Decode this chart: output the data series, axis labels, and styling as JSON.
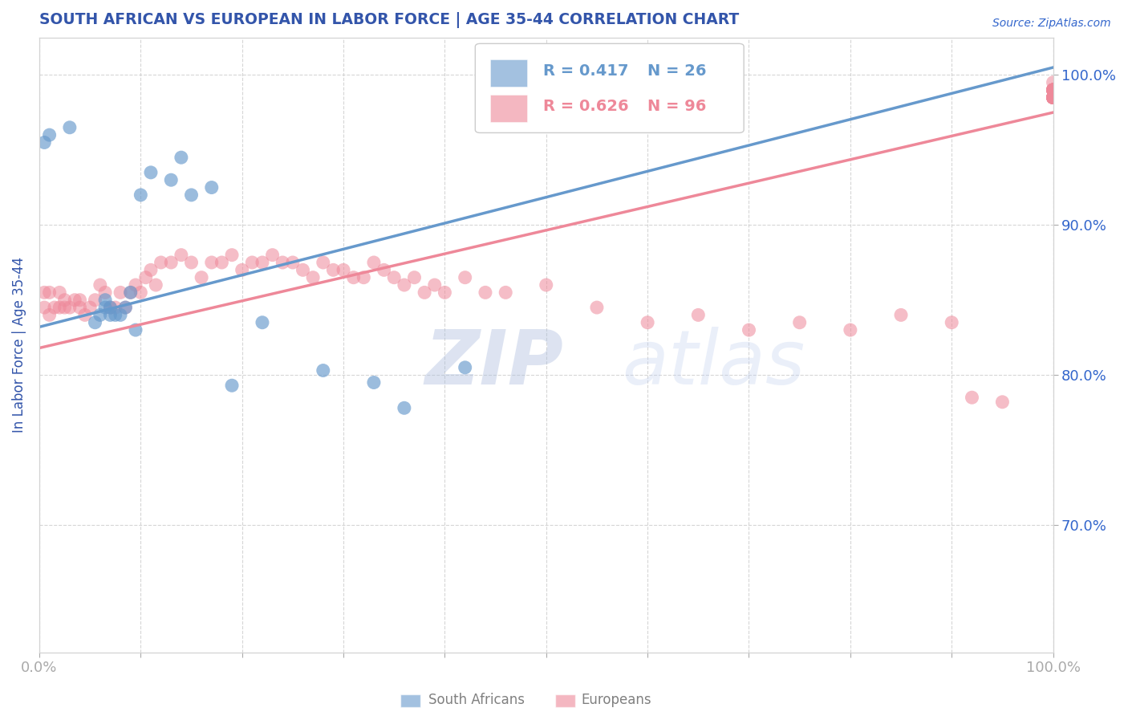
{
  "title": "SOUTH AFRICAN VS EUROPEAN IN LABOR FORCE | AGE 35-44 CORRELATION CHART",
  "source": "Source: ZipAtlas.com",
  "ylabel": "In Labor Force | Age 35-44",
  "xlim": [
    0.0,
    1.0
  ],
  "ylim": [
    0.615,
    1.025
  ],
  "right_yticks": [
    0.7,
    0.8,
    0.9,
    1.0
  ],
  "right_yticklabels": [
    "70.0%",
    "80.0%",
    "90.0%",
    "100.0%"
  ],
  "xticks": [
    0.0,
    0.1,
    0.2,
    0.3,
    0.4,
    0.5,
    0.6,
    0.7,
    0.8,
    0.9,
    1.0
  ],
  "grid_color": "#cccccc",
  "blue_color": "#6699cc",
  "pink_color": "#ee8899",
  "title_color": "#3355aa",
  "axis_label_color": "#3355aa",
  "tick_color": "#3366cc",
  "watermark_zip": "ZIP",
  "watermark_atlas": "atlas",
  "legend_r_blue": "R = 0.417",
  "legend_n_blue": "N = 26",
  "legend_r_pink": "R = 0.626",
  "legend_n_pink": "N = 96",
  "blue_trend_x0": 0.0,
  "blue_trend_y0": 0.832,
  "blue_trend_x1": 1.0,
  "blue_trend_y1": 1.005,
  "pink_trend_x0": 0.0,
  "pink_trend_y0": 0.818,
  "pink_trend_x1": 1.0,
  "pink_trend_y1": 0.975,
  "sa_x": [
    0.005,
    0.01,
    0.03,
    0.055,
    0.06,
    0.065,
    0.065,
    0.07,
    0.07,
    0.075,
    0.08,
    0.085,
    0.09,
    0.095,
    0.1,
    0.11,
    0.13,
    0.14,
    0.15,
    0.17,
    0.19,
    0.22,
    0.28,
    0.33,
    0.36,
    0.42
  ],
  "sa_y": [
    0.955,
    0.96,
    0.965,
    0.835,
    0.84,
    0.845,
    0.85,
    0.84,
    0.845,
    0.84,
    0.84,
    0.845,
    0.855,
    0.83,
    0.92,
    0.935,
    0.93,
    0.945,
    0.92,
    0.925,
    0.793,
    0.835,
    0.803,
    0.795,
    0.778,
    0.805
  ],
  "eu_x": [
    0.005,
    0.005,
    0.01,
    0.01,
    0.015,
    0.02,
    0.02,
    0.025,
    0.025,
    0.03,
    0.035,
    0.04,
    0.04,
    0.045,
    0.05,
    0.055,
    0.06,
    0.065,
    0.07,
    0.075,
    0.08,
    0.085,
    0.09,
    0.095,
    0.1,
    0.105,
    0.11,
    0.115,
    0.12,
    0.13,
    0.14,
    0.15,
    0.16,
    0.17,
    0.18,
    0.19,
    0.2,
    0.21,
    0.22,
    0.23,
    0.24,
    0.25,
    0.26,
    0.27,
    0.28,
    0.29,
    0.3,
    0.31,
    0.32,
    0.33,
    0.34,
    0.35,
    0.36,
    0.37,
    0.38,
    0.39,
    0.4,
    0.42,
    0.44,
    0.46,
    0.5,
    0.55,
    0.6,
    0.65,
    0.7,
    0.75,
    0.8,
    0.85,
    0.9,
    0.92,
    0.95,
    1.0,
    1.0,
    1.0,
    1.0,
    1.0,
    1.0,
    1.0,
    1.0,
    1.0,
    1.0,
    1.0,
    1.0,
    1.0,
    1.0,
    1.0,
    1.0,
    1.0,
    1.0,
    1.0,
    1.0,
    1.0,
    1.0,
    1.0,
    1.0,
    1.0
  ],
  "eu_y": [
    0.845,
    0.855,
    0.84,
    0.855,
    0.845,
    0.845,
    0.855,
    0.845,
    0.85,
    0.845,
    0.85,
    0.845,
    0.85,
    0.84,
    0.845,
    0.85,
    0.86,
    0.855,
    0.845,
    0.845,
    0.855,
    0.845,
    0.855,
    0.86,
    0.855,
    0.865,
    0.87,
    0.86,
    0.875,
    0.875,
    0.88,
    0.875,
    0.865,
    0.875,
    0.875,
    0.88,
    0.87,
    0.875,
    0.875,
    0.88,
    0.875,
    0.875,
    0.87,
    0.865,
    0.875,
    0.87,
    0.87,
    0.865,
    0.865,
    0.875,
    0.87,
    0.865,
    0.86,
    0.865,
    0.855,
    0.86,
    0.855,
    0.865,
    0.855,
    0.855,
    0.86,
    0.845,
    0.835,
    0.84,
    0.83,
    0.835,
    0.83,
    0.84,
    0.835,
    0.785,
    0.782,
    0.995,
    0.99,
    0.985,
    0.99,
    0.985,
    0.99,
    0.99,
    0.985,
    0.99,
    0.985,
    0.99,
    0.99,
    0.985,
    0.99,
    0.985,
    0.99,
    0.985,
    0.99,
    0.985,
    0.99,
    0.985,
    0.99,
    0.985,
    0.99,
    0.985
  ]
}
